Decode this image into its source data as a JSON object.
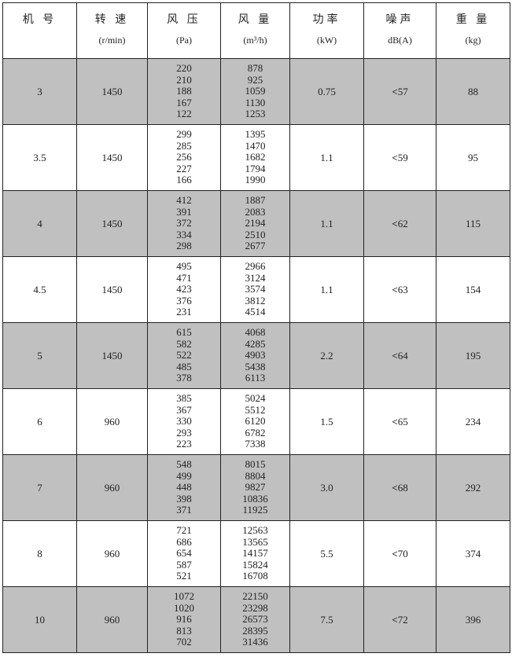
{
  "headers": [
    {
      "title": "机 号",
      "unit": ""
    },
    {
      "title": "转 速",
      "unit": "(r/min)"
    },
    {
      "title": "风 压",
      "unit": "(Pa)"
    },
    {
      "title": "风 量",
      "unit": "(m³/h)"
    },
    {
      "title": "功率",
      "unit": "(kW)"
    },
    {
      "title": "噪声",
      "unit": "dB(A)"
    },
    {
      "title": "重 量",
      "unit": "(kg)"
    }
  ],
  "noise_prefix": "<",
  "row_shading": "#c0c0c0",
  "rows": [
    {
      "model": "3",
      "speed": "1450",
      "pressure": [
        "220",
        "210",
        "188",
        "167",
        "122"
      ],
      "flow": [
        "878",
        "925",
        "1059",
        "1130",
        "1253"
      ],
      "power": "0.75",
      "noise": "57",
      "weight": "88",
      "shaded": true
    },
    {
      "model": "3.5",
      "speed": "1450",
      "pressure": [
        "299",
        "285",
        "256",
        "227",
        "166"
      ],
      "flow": [
        "1395",
        "1470",
        "1682",
        "1794",
        "1990"
      ],
      "power": "1.1",
      "noise": "59",
      "weight": "95",
      "shaded": false
    },
    {
      "model": "4",
      "speed": "1450",
      "pressure": [
        "412",
        "391",
        "372",
        "334",
        "298"
      ],
      "flow": [
        "1887",
        "2083",
        "2194",
        "2510",
        "2677"
      ],
      "power": "1.1",
      "noise": "62",
      "weight": "115",
      "shaded": true
    },
    {
      "model": "4.5",
      "speed": "1450",
      "pressure": [
        "495",
        "471",
        "423",
        "376",
        "231"
      ],
      "flow": [
        "2966",
        "3124",
        "3574",
        "3812",
        "4514"
      ],
      "power": "1.1",
      "noise": "63",
      "weight": "154",
      "shaded": false
    },
    {
      "model": "5",
      "speed": "1450",
      "pressure": [
        "615",
        "582",
        "522",
        "485",
        "378"
      ],
      "flow": [
        "4068",
        "4285",
        "4903",
        "5438",
        "6113"
      ],
      "power": "2.2",
      "noise": "64",
      "weight": "195",
      "shaded": true
    },
    {
      "model": "6",
      "speed": "960",
      "pressure": [
        "385",
        "367",
        "330",
        "293",
        "223"
      ],
      "flow": [
        "5024",
        "5512",
        "6120",
        "6782",
        "7338"
      ],
      "power": "1.5",
      "noise": "65",
      "weight": "234",
      "shaded": false
    },
    {
      "model": "7",
      "speed": "960",
      "pressure": [
        "548",
        "499",
        "448",
        "398",
        "371"
      ],
      "flow": [
        "8015",
        "8804",
        "9827",
        "10836",
        "11925"
      ],
      "power": "3.0",
      "noise": "68",
      "weight": "292",
      "shaded": true
    },
    {
      "model": "8",
      "speed": "960",
      "pressure": [
        "721",
        "686",
        "654",
        "587",
        "521"
      ],
      "flow": [
        "12563",
        "13565",
        "14157",
        "15824",
        "16708"
      ],
      "power": "5.5",
      "noise": "70",
      "weight": "374",
      "shaded": false
    },
    {
      "model": "10",
      "speed": "960",
      "pressure": [
        "1072",
        "1020",
        "916",
        "813",
        "702"
      ],
      "flow": [
        "22150",
        "23298",
        "26573",
        "28395",
        "31436"
      ],
      "power": "7.5",
      "noise": "72",
      "weight": "396",
      "shaded": true
    }
  ]
}
